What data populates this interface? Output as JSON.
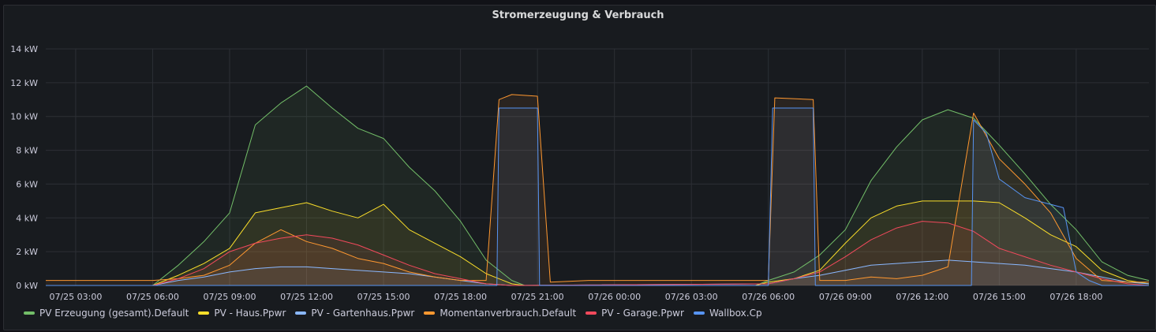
{
  "chart_data": {
    "type": "area",
    "title": "Stromerzeugung & Verbrauch",
    "y_unit": "kW",
    "ylim": [
      0,
      14
    ],
    "y_ticks": [
      "0 kW",
      "2 kW",
      "4 kW",
      "6 kW",
      "8 kW",
      "10 kW",
      "12 kW",
      "14 kW"
    ],
    "xlim": [
      "07/25 01:50",
      "07/26 20:50"
    ],
    "x_ticks": [
      "07/25 03:00",
      "07/25 06:00",
      "07/25 09:00",
      "07/25 12:00",
      "07/25 15:00",
      "07/25 18:00",
      "07/25 21:00",
      "07/26 00:00",
      "07/26 03:00",
      "07/26 06:00",
      "07/26 09:00",
      "07/26 12:00",
      "07/26 15:00",
      "07/26 18:00"
    ],
    "grid": true,
    "legend_position": "bottom-left",
    "series": [
      {
        "name": "PV Erzeugung (gesamt).Default",
        "color": "#73bf69",
        "points": [
          [
            "07/25 01:50",
            0
          ],
          [
            "07/25 06:00",
            0
          ],
          [
            "07/25 07:00",
            1.2
          ],
          [
            "07/25 08:00",
            2.6
          ],
          [
            "07/25 09:00",
            4.3
          ],
          [
            "07/25 10:00",
            9.5
          ],
          [
            "07/25 11:00",
            10.8
          ],
          [
            "07/25 12:00",
            11.8
          ],
          [
            "07/25 13:00",
            10.5
          ],
          [
            "07/25 14:00",
            9.3
          ],
          [
            "07/25 15:00",
            8.7
          ],
          [
            "07/25 16:00",
            7.0
          ],
          [
            "07/25 17:00",
            5.6
          ],
          [
            "07/25 18:00",
            3.8
          ],
          [
            "07/25 19:00",
            1.5
          ],
          [
            "07/25 20:00",
            0.3
          ],
          [
            "07/25 20:30",
            0
          ],
          [
            "07/26 05:30",
            0
          ],
          [
            "07/26 06:00",
            0.3
          ],
          [
            "07/26 07:00",
            0.8
          ],
          [
            "07/26 08:00",
            1.8
          ],
          [
            "07/26 09:00",
            3.3
          ],
          [
            "07/26 10:00",
            6.2
          ],
          [
            "07/26 11:00",
            8.2
          ],
          [
            "07/26 12:00",
            9.8
          ],
          [
            "07/26 13:00",
            10.4
          ],
          [
            "07/26 14:00",
            9.9
          ],
          [
            "07/26 15:00",
            8.3
          ],
          [
            "07/26 16:00",
            6.6
          ],
          [
            "07/26 17:00",
            4.8
          ],
          [
            "07/26 18:00",
            3.3
          ],
          [
            "07/26 19:00",
            1.4
          ],
          [
            "07/26 20:00",
            0.6
          ],
          [
            "07/26 20:50",
            0.3
          ]
        ]
      },
      {
        "name": "PV - Haus.Ppwr",
        "color": "#fade2a",
        "points": [
          [
            "07/25 01:50",
            0
          ],
          [
            "07/25 06:00",
            0
          ],
          [
            "07/25 07:00",
            0.6
          ],
          [
            "07/25 08:00",
            1.3
          ],
          [
            "07/25 09:00",
            2.2
          ],
          [
            "07/25 10:00",
            4.3
          ],
          [
            "07/25 11:00",
            4.6
          ],
          [
            "07/25 12:00",
            4.9
          ],
          [
            "07/25 13:00",
            4.4
          ],
          [
            "07/25 14:00",
            4.0
          ],
          [
            "07/25 15:00",
            4.8
          ],
          [
            "07/25 16:00",
            3.3
          ],
          [
            "07/25 17:00",
            2.5
          ],
          [
            "07/25 18:00",
            1.7
          ],
          [
            "07/25 19:00",
            0.7
          ],
          [
            "07/25 20:00",
            0.1
          ],
          [
            "07/25 20:30",
            0
          ],
          [
            "07/26 05:30",
            0
          ],
          [
            "07/26 06:00",
            0.2
          ],
          [
            "07/26 07:00",
            0.4
          ],
          [
            "07/26 08:00",
            0.9
          ],
          [
            "07/26 09:00",
            2.5
          ],
          [
            "07/26 10:00",
            4.0
          ],
          [
            "07/26 11:00",
            4.7
          ],
          [
            "07/26 12:00",
            5.0
          ],
          [
            "07/26 13:00",
            5.0
          ],
          [
            "07/26 14:00",
            5.0
          ],
          [
            "07/26 15:00",
            4.9
          ],
          [
            "07/26 16:00",
            4.0
          ],
          [
            "07/26 17:00",
            3.0
          ],
          [
            "07/26 18:00",
            2.3
          ],
          [
            "07/26 19:00",
            0.9
          ],
          [
            "07/26 20:00",
            0.3
          ],
          [
            "07/26 20:50",
            0.1
          ]
        ]
      },
      {
        "name": "PV - Gartenhaus.Ppwr",
        "color": "#8ab8ff",
        "points": [
          [
            "07/25 01:50",
            0
          ],
          [
            "07/25 06:00",
            0
          ],
          [
            "07/25 07:00",
            0.3
          ],
          [
            "07/25 08:00",
            0.5
          ],
          [
            "07/25 09:00",
            0.8
          ],
          [
            "07/25 10:00",
            1.0
          ],
          [
            "07/25 11:00",
            1.1
          ],
          [
            "07/25 12:00",
            1.1
          ],
          [
            "07/25 13:00",
            1.0
          ],
          [
            "07/25 14:00",
            0.9
          ],
          [
            "07/25 15:00",
            0.8
          ],
          [
            "07/25 16:00",
            0.7
          ],
          [
            "07/25 17:00",
            0.5
          ],
          [
            "07/25 18:00",
            0.3
          ],
          [
            "07/25 19:00",
            0.1
          ],
          [
            "07/25 20:00",
            0
          ],
          [
            "07/26 06:00",
            0.1
          ],
          [
            "07/26 07:00",
            0.4
          ],
          [
            "07/26 08:00",
            0.6
          ],
          [
            "07/26 09:00",
            0.9
          ],
          [
            "07/26 10:00",
            1.2
          ],
          [
            "07/26 11:00",
            1.3
          ],
          [
            "07/26 12:00",
            1.4
          ],
          [
            "07/26 13:00",
            1.5
          ],
          [
            "07/26 14:00",
            1.4
          ],
          [
            "07/26 15:00",
            1.3
          ],
          [
            "07/26 16:00",
            1.2
          ],
          [
            "07/26 17:00",
            1.0
          ],
          [
            "07/26 18:00",
            0.8
          ],
          [
            "07/26 19:00",
            0.5
          ],
          [
            "07/26 20:00",
            0.2
          ],
          [
            "07/26 20:50",
            0.1
          ]
        ]
      },
      {
        "name": "Momentanverbrauch.Default",
        "color": "#ff9830",
        "points": [
          [
            "07/25 01:50",
            0.3
          ],
          [
            "07/25 06:00",
            0.3
          ],
          [
            "07/25 07:00",
            0.4
          ],
          [
            "07/25 08:00",
            0.6
          ],
          [
            "07/25 09:00",
            1.2
          ],
          [
            "07/25 10:00",
            2.5
          ],
          [
            "07/25 11:00",
            3.3
          ],
          [
            "07/25 12:00",
            2.6
          ],
          [
            "07/25 13:00",
            2.2
          ],
          [
            "07/25 14:00",
            1.6
          ],
          [
            "07/25 15:00",
            1.3
          ],
          [
            "07/25 16:00",
            0.8
          ],
          [
            "07/25 17:00",
            0.5
          ],
          [
            "07/25 18:00",
            0.3
          ],
          [
            "07/25 19:00",
            0.3
          ],
          [
            "07/25 19:30",
            11.0
          ],
          [
            "07/25 20:00",
            11.3
          ],
          [
            "07/25 21:00",
            11.2
          ],
          [
            "07/25 21:30",
            0.2
          ],
          [
            "07/25 23:00",
            0.3
          ],
          [
            "07/26 06:00",
            0.3
          ],
          [
            "07/26 06:15",
            11.1
          ],
          [
            "07/26 07:45",
            11.0
          ],
          [
            "07/26 08:00",
            0.3
          ],
          [
            "07/26 09:00",
            0.3
          ],
          [
            "07/26 10:00",
            0.5
          ],
          [
            "07/26 11:00",
            0.4
          ],
          [
            "07/26 12:00",
            0.6
          ],
          [
            "07/26 13:00",
            1.1
          ],
          [
            "07/26 14:00",
            10.2
          ],
          [
            "07/26 15:00",
            7.5
          ],
          [
            "07/26 16:00",
            6.0
          ],
          [
            "07/26 17:00",
            4.3
          ],
          [
            "07/26 18:00",
            1.6
          ],
          [
            "07/26 19:00",
            0.3
          ],
          [
            "07/26 20:00",
            0.2
          ],
          [
            "07/26 20:50",
            0.2
          ]
        ]
      },
      {
        "name": "PV - Garage.Ppwr",
        "color": "#f2495c",
        "points": [
          [
            "07/25 01:50",
            0
          ],
          [
            "07/25 06:00",
            0
          ],
          [
            "07/25 07:00",
            0.4
          ],
          [
            "07/25 08:00",
            1.0
          ],
          [
            "07/25 09:00",
            2.0
          ],
          [
            "07/25 10:00",
            2.5
          ],
          [
            "07/25 11:00",
            2.8
          ],
          [
            "07/25 12:00",
            3.0
          ],
          [
            "07/25 13:00",
            2.8
          ],
          [
            "07/25 14:00",
            2.4
          ],
          [
            "07/25 15:00",
            1.8
          ],
          [
            "07/25 16:00",
            1.2
          ],
          [
            "07/25 17:00",
            0.7
          ],
          [
            "07/25 18:00",
            0.4
          ],
          [
            "07/25 19:00",
            0.1
          ],
          [
            "07/25 20:00",
            0
          ],
          [
            "07/26 06:00",
            0.1
          ],
          [
            "07/26 07:00",
            0.4
          ],
          [
            "07/26 08:00",
            0.8
          ],
          [
            "07/26 09:00",
            1.7
          ],
          [
            "07/26 10:00",
            2.7
          ],
          [
            "07/26 11:00",
            3.4
          ],
          [
            "07/26 12:00",
            3.8
          ],
          [
            "07/26 13:00",
            3.7
          ],
          [
            "07/26 14:00",
            3.2
          ],
          [
            "07/26 15:00",
            2.2
          ],
          [
            "07/26 16:00",
            1.7
          ],
          [
            "07/26 17:00",
            1.2
          ],
          [
            "07/26 18:00",
            0.8
          ],
          [
            "07/26 19:00",
            0.4
          ],
          [
            "07/26 20:00",
            0.1
          ],
          [
            "07/26 20:50",
            0
          ]
        ]
      },
      {
        "name": "Wallbox.Cp",
        "color": "#5794f2",
        "points": [
          [
            "07/25 01:50",
            0
          ],
          [
            "07/25 19:25",
            0
          ],
          [
            "07/25 19:30",
            10.5
          ],
          [
            "07/25 21:00",
            10.5
          ],
          [
            "07/25 21:05",
            0
          ],
          [
            "07/26 06:00",
            0
          ],
          [
            "07/26 06:10",
            10.5
          ],
          [
            "07/26 07:45",
            10.5
          ],
          [
            "07/26 07:50",
            0
          ],
          [
            "07/26 13:55",
            0
          ],
          [
            "07/26 14:00",
            9.8
          ],
          [
            "07/26 14:30",
            9.0
          ],
          [
            "07/26 15:00",
            6.3
          ],
          [
            "07/26 16:00",
            5.2
          ],
          [
            "07/26 17:00",
            4.8
          ],
          [
            "07/26 17:30",
            4.6
          ],
          [
            "07/26 18:00",
            0.8
          ],
          [
            "07/26 18:30",
            0.3
          ],
          [
            "07/26 19:00",
            0
          ],
          [
            "07/26 20:50",
            0
          ]
        ]
      }
    ]
  }
}
